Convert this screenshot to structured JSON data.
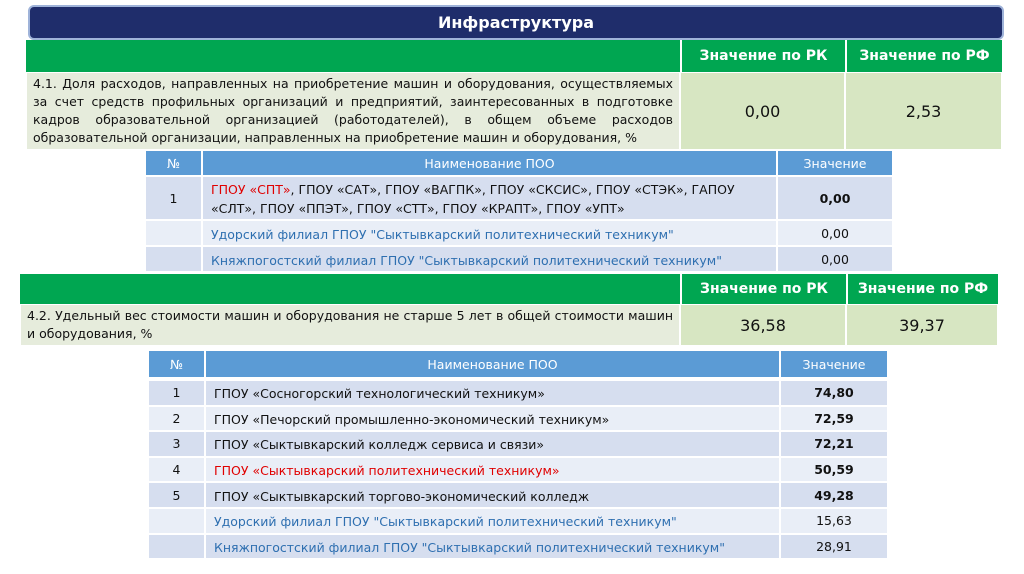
{
  "title": "Инфраструктура",
  "sections": [
    {
      "indicator": {
        "headers": [
          "Значение по РК",
          "Значение по РФ"
        ],
        "text": "4.1. Доля расходов, направленных на приобретение машин и оборудования, осуществляемых за счет средств профильных организаций и предприятий, заинтересованных в подготовке кадров образовательной организацией (работодателей), в общем объеме расходов образовательной организации, направленных на приобретение машин и оборудования, %",
        "rk": "0,00",
        "rf": "2,53"
      },
      "table": {
        "headers": [
          "№",
          "Наименование ПОО",
          "Значение"
        ],
        "rows": [
          {
            "num": "1",
            "name": [
              {
                "text": "ГПОУ «СПТ»",
                "color": "red"
              },
              {
                "text": ", ГПОУ «САТ», ГПОУ «ВАГПК», ГПОУ «СКСИС», ГПОУ «СТЭК», ГАПОУ «СЛТ», ГПОУ «ППЭТ», ГПОУ «СТТ», ГПОУ «КРАПТ», ГПОУ «УПТ»",
                "color": "black"
              }
            ],
            "value": "0,00",
            "value_bold": true
          },
          {
            "name": [
              {
                "text": "Удорский филиал ГПОУ  \"Сыктывкарский политехнический техникум\"",
                "color": "blue"
              }
            ],
            "value": "0,00",
            "value_bold": false
          },
          {
            "name": [
              {
                "text": "Княжпогостский филиал ГПОУ  \"Сыктывкарский политехнический техникум\"",
                "color": "blue"
              }
            ],
            "value": "0,00",
            "value_bold": false
          }
        ]
      }
    },
    {
      "indicator": {
        "headers": [
          "Значение по РК",
          "Значение по РФ"
        ],
        "text": "4.2. Удельный вес стоимости машин и оборудования не старше 5 лет в общей стоимости машин и оборудования, %",
        "rk": "36,58",
        "rf": "39,37"
      },
      "table": {
        "headers": [
          "№",
          "Наименование ПОО",
          "Значение"
        ],
        "rows": [
          {
            "num": "1",
            "name": [
              {
                "text": "ГПОУ «Сосногорский технологический техникум»",
                "color": "black"
              }
            ],
            "value": "74,80",
            "value_bold": true
          },
          {
            "num": "2",
            "name": [
              {
                "text": "ГПОУ «Печорский промышленно-экономический техникум»",
                "color": "black"
              }
            ],
            "value": "72,59",
            "value_bold": true
          },
          {
            "num": "3",
            "name": [
              {
                "text": "ГПОУ «Сыктывкарский колледж сервиса и связи»",
                "color": "black"
              }
            ],
            "value": "72,21",
            "value_bold": true
          },
          {
            "num": "4",
            "name": [
              {
                "text": "ГПОУ «Сыктывкарский политехнический техникум»",
                "color": "red"
              }
            ],
            "value": "50,59",
            "value_bold": true
          },
          {
            "num": "5",
            "name": [
              {
                "text": "ГПОУ «Сыктывкарский торгово-экономический колледж",
                "color": "black"
              }
            ],
            "value": "49,28",
            "value_bold": true
          },
          {
            "name": [
              {
                "text": "Удорский филиал ГПОУ  \"Сыктывкарский политехнический техникум\"",
                "color": "blue"
              }
            ],
            "value": "15,63",
            "value_bold": false
          },
          {
            "name": [
              {
                "text": "Княжпогостский филиал ГПОУ  \"Сыктывкарский политехнический техникум\"",
                "color": "blue"
              }
            ],
            "value": "28,91",
            "value_bold": false
          }
        ]
      }
    }
  ]
}
